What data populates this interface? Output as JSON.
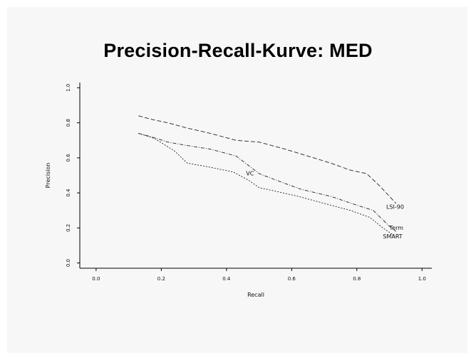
{
  "slide": {
    "title": "Precision-Recall-Kurve: MED"
  },
  "chart_data": {
    "type": "line",
    "xlabel": "Recall",
    "ylabel": "Precision",
    "xlim": [
      -0.05,
      1.03
    ],
    "ylim": [
      -0.03,
      1.03
    ],
    "x_ticks": [
      "0.0",
      "0.2",
      "0.4",
      "0.6",
      "0.8",
      "1.0"
    ],
    "y_ticks": [
      "0.0",
      "0.2",
      "0.4",
      "0.6",
      "0.8",
      "1.0"
    ],
    "grid": false,
    "legend": "none",
    "series": [
      {
        "name": "LSI-90",
        "dash": "6,3",
        "x": [
          0.13,
          0.17,
          0.22,
          0.28,
          0.35,
          0.43,
          0.5,
          0.58,
          0.65,
          0.72,
          0.78,
          0.83,
          0.87,
          0.9,
          0.92
        ],
        "y": [
          0.84,
          0.82,
          0.8,
          0.77,
          0.74,
          0.7,
          0.69,
          0.65,
          0.61,
          0.57,
          0.53,
          0.51,
          0.44,
          0.38,
          0.34
        ]
      },
      {
        "name": "Term",
        "dash": "5,2,1,2",
        "x": [
          0.13,
          0.17,
          0.22,
          0.28,
          0.35,
          0.43,
          0.5,
          0.57,
          0.63,
          0.72,
          0.8,
          0.85,
          0.9,
          0.92
        ],
        "y": [
          0.74,
          0.72,
          0.69,
          0.67,
          0.65,
          0.61,
          0.51,
          0.46,
          0.42,
          0.38,
          0.33,
          0.3,
          0.21,
          0.18
        ]
      },
      {
        "name": "SMART",
        "dash": "2,2",
        "x": [
          0.13,
          0.18,
          0.24,
          0.28,
          0.34,
          0.42,
          0.47,
          0.5,
          0.55,
          0.62,
          0.7,
          0.78,
          0.84,
          0.88,
          0.92
        ],
        "y": [
          0.74,
          0.71,
          0.64,
          0.57,
          0.55,
          0.52,
          0.47,
          0.43,
          0.41,
          0.38,
          0.34,
          0.3,
          0.26,
          0.2,
          0.15
        ]
      }
    ],
    "annotations": [
      {
        "text": "VC",
        "x": 0.46,
        "y": 0.5
      },
      {
        "text": "LSI-90",
        "x": 0.89,
        "y": 0.31
      },
      {
        "text": "Term",
        "x": 0.9,
        "y": 0.19
      },
      {
        "text": "SMART",
        "x": 0.88,
        "y": 0.14
      }
    ]
  }
}
